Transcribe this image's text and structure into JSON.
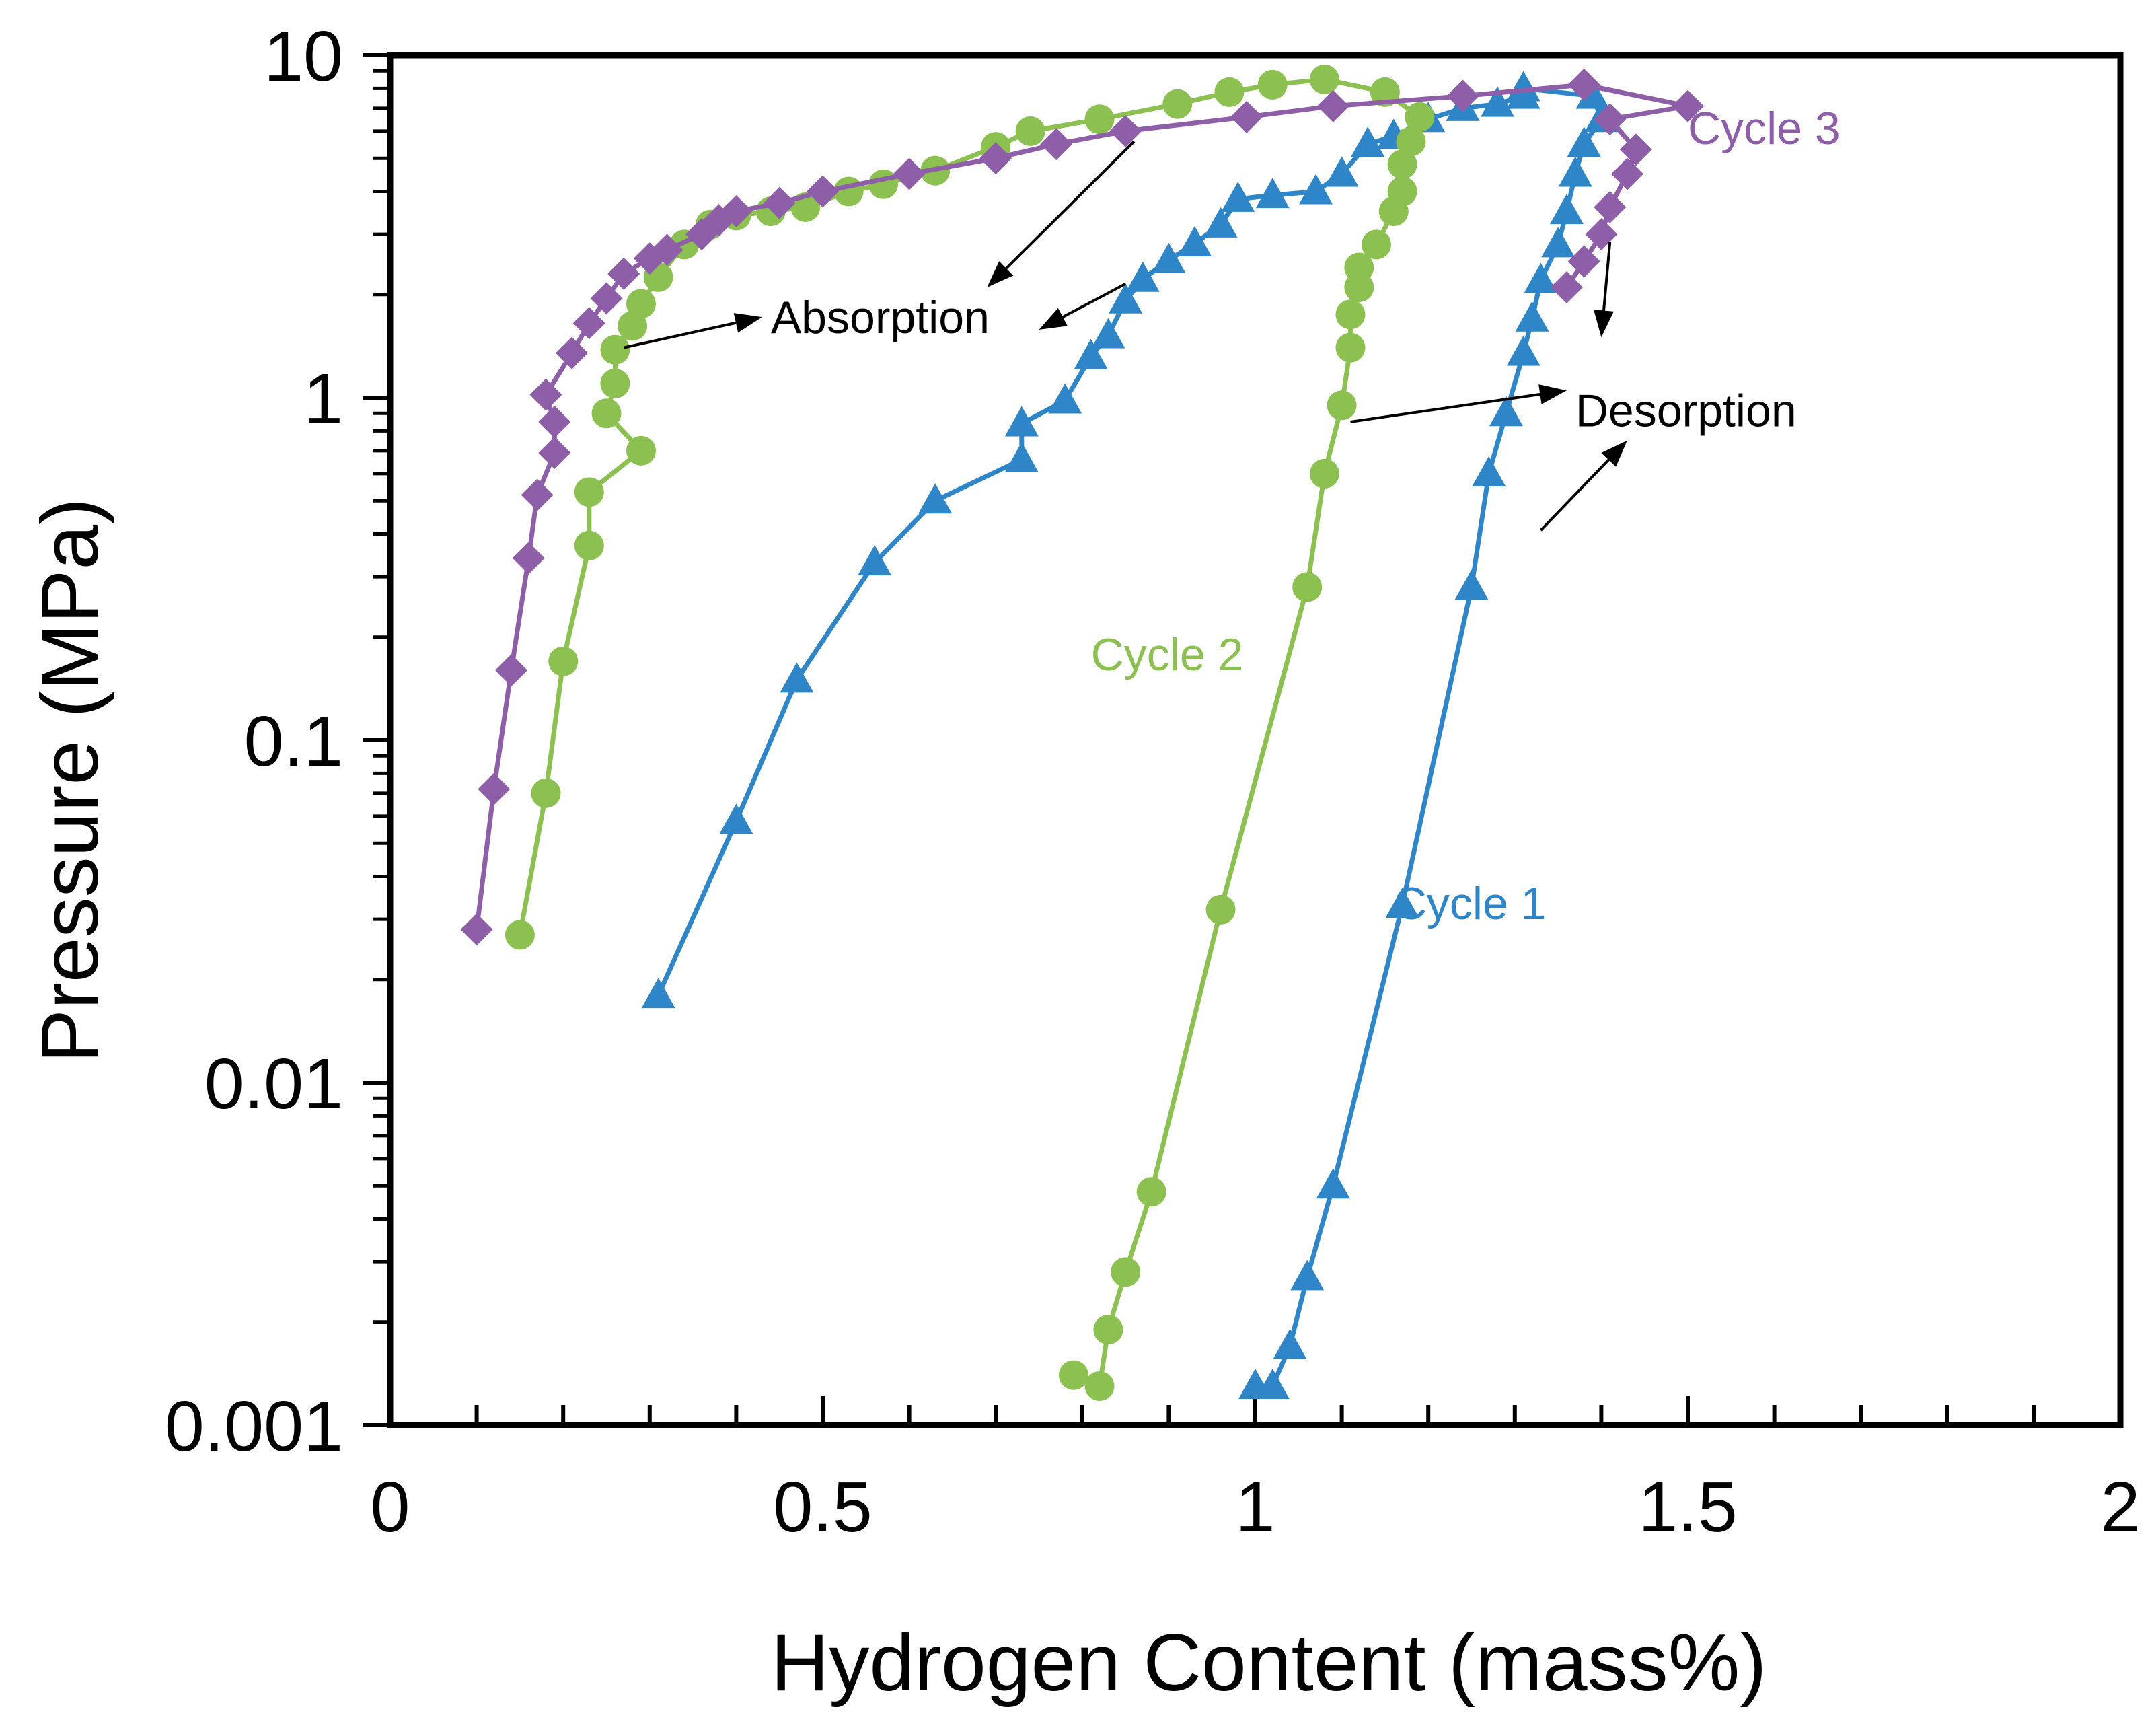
{
  "chart_data": {
    "type": "line",
    "title": "",
    "xlabel": "Hydrogen Content (mass%)",
    "ylabel": "Pressure (MPa)",
    "xlim": [
      0,
      2
    ],
    "ylim": [
      0.001,
      10
    ],
    "yscale": "log",
    "grid": false,
    "x_ticks": [
      0,
      0.5,
      1,
      1.5,
      2
    ],
    "x_tick_labels": [
      "0",
      "0.5",
      "1",
      "1.5",
      "2"
    ],
    "x_minor_step": 0.1,
    "y_ticks": [
      0.001,
      0.01,
      0.1,
      1,
      10
    ],
    "y_tick_labels": [
      "0.001",
      "0.01",
      "0.1",
      "1",
      "10"
    ],
    "series": [
      {
        "name": "Cycle 1",
        "color": "#2e86c8",
        "marker": "triangle",
        "label_at": [
          1.16,
          0.03
        ],
        "points": [
          [
            0.31,
            0.018
          ],
          [
            0.4,
            0.058
          ],
          [
            0.47,
            0.15
          ],
          [
            0.56,
            0.33
          ],
          [
            0.63,
            0.5
          ],
          [
            0.73,
            0.66
          ],
          [
            0.73,
            0.84
          ],
          [
            0.78,
            0.98
          ],
          [
            0.81,
            1.32
          ],
          [
            0.83,
            1.52
          ],
          [
            0.85,
            1.92
          ],
          [
            0.87,
            2.22
          ],
          [
            0.9,
            2.52
          ],
          [
            0.93,
            2.82
          ],
          [
            0.96,
            3.2
          ],
          [
            0.98,
            3.8
          ],
          [
            1.02,
            3.9
          ],
          [
            1.07,
            4.0
          ],
          [
            1.1,
            4.5
          ],
          [
            1.13,
            5.5
          ],
          [
            1.16,
            5.8
          ],
          [
            1.2,
            6.5
          ],
          [
            1.24,
            7.0
          ],
          [
            1.28,
            7.2
          ],
          [
            1.31,
            7.6
          ],
          [
            1.31,
            8.0
          ],
          [
            1.39,
            7.6
          ],
          [
            1.4,
            6.5
          ],
          [
            1.38,
            5.5
          ],
          [
            1.37,
            4.5
          ],
          [
            1.36,
            3.5
          ],
          [
            1.35,
            2.8
          ],
          [
            1.33,
            2.2
          ],
          [
            1.32,
            1.7
          ],
          [
            1.31,
            1.35
          ],
          [
            1.29,
            0.9
          ],
          [
            1.27,
            0.6
          ],
          [
            1.25,
            0.28
          ],
          [
            1.17,
            0.033
          ],
          [
            1.09,
            0.005
          ],
          [
            1.06,
            0.0027
          ],
          [
            1.04,
            0.0017
          ],
          [
            1.02,
            0.0013
          ],
          [
            1.0,
            0.0013
          ]
        ]
      },
      {
        "name": "Cycle 2",
        "color": "#8cc152",
        "marker": "circle",
        "label_at": [
          0.81,
          0.16
        ],
        "points": [
          [
            0.15,
            0.027
          ],
          [
            0.18,
            0.07
          ],
          [
            0.2,
            0.17
          ],
          [
            0.23,
            0.37
          ],
          [
            0.23,
            0.53
          ],
          [
            0.29,
            0.7
          ],
          [
            0.25,
            0.9
          ],
          [
            0.26,
            1.1
          ],
          [
            0.26,
            1.38
          ],
          [
            0.28,
            1.62
          ],
          [
            0.29,
            1.88
          ],
          [
            0.31,
            2.25
          ],
          [
            0.34,
            2.8
          ],
          [
            0.37,
            3.2
          ],
          [
            0.4,
            3.4
          ],
          [
            0.44,
            3.5
          ],
          [
            0.48,
            3.6
          ],
          [
            0.53,
            4.0
          ],
          [
            0.57,
            4.2
          ],
          [
            0.63,
            4.6
          ],
          [
            0.7,
            5.4
          ],
          [
            0.74,
            6.0
          ],
          [
            0.82,
            6.5
          ],
          [
            0.91,
            7.2
          ],
          [
            0.97,
            7.8
          ],
          [
            1.02,
            8.2
          ],
          [
            1.08,
            8.5
          ],
          [
            1.15,
            7.8
          ],
          [
            1.19,
            6.6
          ],
          [
            1.18,
            5.6
          ],
          [
            1.17,
            4.8
          ],
          [
            1.17,
            4.0
          ],
          [
            1.16,
            3.5
          ],
          [
            1.14,
            2.8
          ],
          [
            1.12,
            2.4
          ],
          [
            1.12,
            2.1
          ],
          [
            1.11,
            1.75
          ],
          [
            1.11,
            1.4
          ],
          [
            1.1,
            0.95
          ],
          [
            1.08,
            0.6
          ],
          [
            1.06,
            0.28
          ],
          [
            0.96,
            0.032
          ],
          [
            0.88,
            0.0048
          ],
          [
            0.85,
            0.0028
          ],
          [
            0.83,
            0.0019
          ],
          [
            0.82,
            0.0013
          ],
          [
            0.79,
            0.0014
          ]
        ]
      },
      {
        "name": "Cycle 3",
        "color": "#8e5ea8",
        "marker": "diamond",
        "label_at": [
          1.5,
          5.5
        ],
        "points": [
          [
            0.1,
            0.028
          ],
          [
            0.12,
            0.072
          ],
          [
            0.14,
            0.16
          ],
          [
            0.16,
            0.34
          ],
          [
            0.17,
            0.52
          ],
          [
            0.19,
            0.69
          ],
          [
            0.19,
            0.85
          ],
          [
            0.18,
            1.02
          ],
          [
            0.21,
            1.35
          ],
          [
            0.23,
            1.65
          ],
          [
            0.25,
            1.95
          ],
          [
            0.27,
            2.3
          ],
          [
            0.3,
            2.55
          ],
          [
            0.32,
            2.7
          ],
          [
            0.36,
            3.0
          ],
          [
            0.38,
            3.3
          ],
          [
            0.4,
            3.5
          ],
          [
            0.45,
            3.7
          ],
          [
            0.5,
            4.0
          ],
          [
            0.6,
            4.5
          ],
          [
            0.7,
            5.0
          ],
          [
            0.77,
            5.5
          ],
          [
            0.85,
            6.0
          ],
          [
            0.99,
            6.6
          ],
          [
            1.09,
            7.1
          ],
          [
            1.24,
            7.6
          ],
          [
            1.38,
            8.2
          ],
          [
            1.5,
            7.1
          ],
          [
            1.41,
            6.5
          ],
          [
            1.44,
            5.3
          ],
          [
            1.43,
            4.5
          ],
          [
            1.41,
            3.6
          ],
          [
            1.4,
            3.0
          ],
          [
            1.38,
            2.5
          ],
          [
            1.36,
            2.1
          ]
        ]
      }
    ],
    "annotations": [
      {
        "text": "Absorption",
        "at": [
          0.44,
          1.72
        ]
      },
      {
        "text": "Desorption",
        "at": [
          1.37,
          0.92
        ]
      }
    ],
    "arrows": [
      {
        "from": [
          0.86,
          5.6
        ],
        "to": [
          0.69,
          2.1
        ]
      },
      {
        "from": [
          0.27,
          1.4
        ],
        "to": [
          0.43,
          1.72
        ]
      },
      {
        "from": [
          0.85,
          2.15
        ],
        "to": [
          0.75,
          1.58
        ]
      },
      {
        "from": [
          1.11,
          0.85
        ],
        "to": [
          1.36,
          1.05
        ]
      },
      {
        "from": [
          1.33,
          0.41
        ],
        "to": [
          1.43,
          0.75
        ]
      },
      {
        "from": [
          1.41,
          2.85
        ],
        "to": [
          1.4,
          1.5
        ]
      }
    ]
  }
}
